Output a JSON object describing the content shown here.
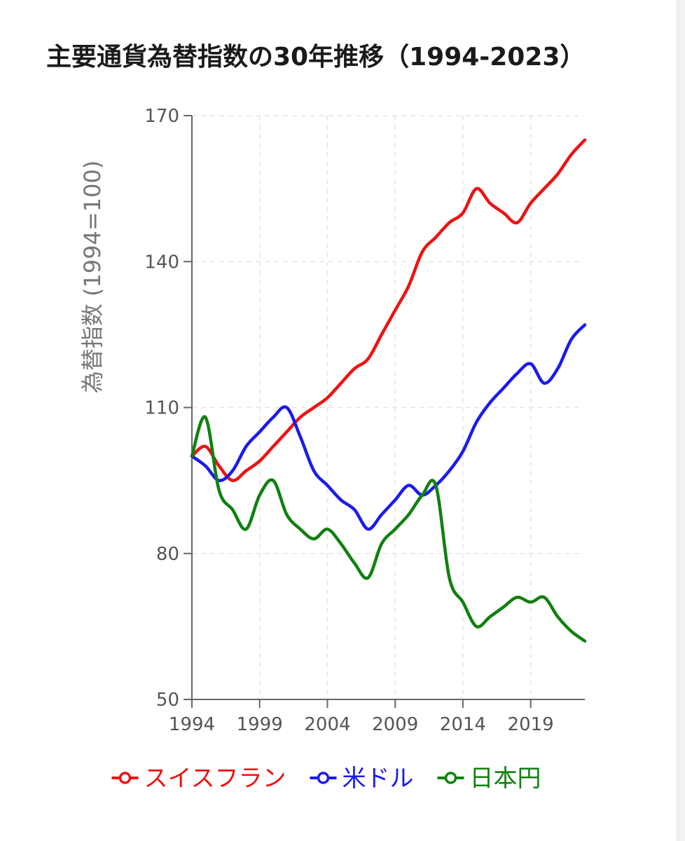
{
  "title": "主要通貨為替指数の30年推移（1994-2023）",
  "chart_data": {
    "type": "line",
    "title": "主要通貨為替指数の30年推移（1994-2023）",
    "xlabel": "",
    "ylabel": "為替指数 (1994=100)",
    "xlim": [
      1994,
      2023
    ],
    "ylim": [
      50,
      170
    ],
    "xticks": [
      "1994",
      "1999",
      "2004",
      "2009",
      "2014",
      "2019"
    ],
    "yticks": [
      "50",
      "80",
      "110",
      "140",
      "170"
    ],
    "grid": true,
    "legend_position": "bottom",
    "x": [
      1994,
      1995,
      1996,
      1997,
      1998,
      1999,
      2000,
      2001,
      2002,
      2003,
      2004,
      2005,
      2006,
      2007,
      2008,
      2009,
      2010,
      2011,
      2012,
      2013,
      2014,
      2015,
      2016,
      2017,
      2018,
      2019,
      2020,
      2021,
      2022,
      2023
    ],
    "series": [
      {
        "name": "スイスフラン",
        "color": "#ee1111",
        "values": [
          100,
          102,
          98,
          95,
          97,
          99,
          102,
          105,
          108,
          110,
          112,
          115,
          118,
          120,
          125,
          130,
          135,
          142,
          145,
          148,
          150,
          155,
          152,
          150,
          148,
          152,
          155,
          158,
          162,
          165
        ]
      },
      {
        "name": "米ドル",
        "color": "#1a1aee",
        "values": [
          100,
          98,
          95,
          97,
          102,
          105,
          108,
          110,
          104,
          97,
          94,
          91,
          89,
          85,
          88,
          91,
          94,
          92,
          94,
          97,
          101,
          107,
          111,
          114,
          117,
          119,
          115,
          118,
          124,
          127
        ]
      },
      {
        "name": "日本円",
        "color": "#108010",
        "values": [
          100,
          108,
          93,
          89,
          85,
          92,
          95,
          88,
          85,
          83,
          85,
          82,
          78,
          75,
          82,
          85,
          88,
          92,
          94,
          75,
          70,
          65,
          67,
          69,
          71,
          70,
          71,
          67,
          64,
          62
        ]
      }
    ]
  }
}
